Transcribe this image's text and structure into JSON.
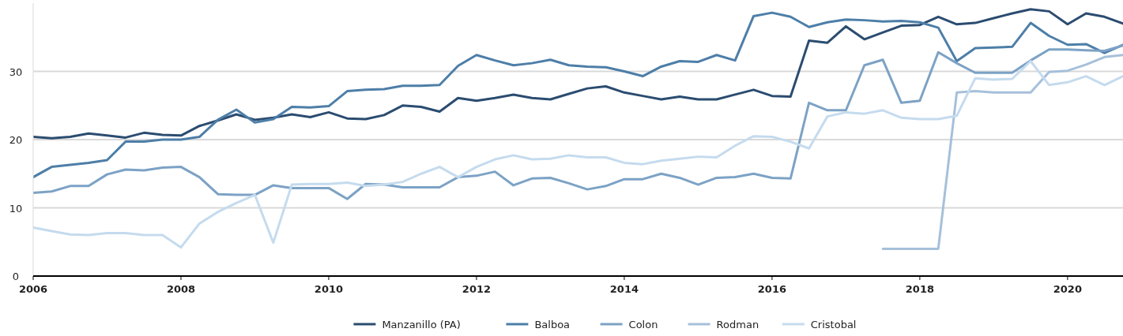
{
  "chart_data": {
    "type": "line",
    "x": [
      2006,
      2006.25,
      2006.5,
      2006.75,
      2007,
      2007.25,
      2007.5,
      2007.75,
      2008,
      2008.25,
      2008.5,
      2008.75,
      2009,
      2009.25,
      2009.5,
      2009.75,
      2010,
      2010.25,
      2010.5,
      2010.75,
      2011,
      2011.25,
      2011.5,
      2011.75,
      2012,
      2012.25,
      2012.5,
      2012.75,
      2013,
      2013.25,
      2013.5,
      2013.75,
      2014,
      2014.25,
      2014.5,
      2014.75,
      2015,
      2015.25,
      2015.5,
      2015.75,
      2016,
      2016.25,
      2016.5,
      2016.75,
      2017,
      2017.25,
      2017.5,
      2017.75,
      2018,
      2018.25,
      2018.5,
      2018.75,
      2019,
      2019.25,
      2019.5,
      2019.75,
      2020,
      2020.25,
      2020.5,
      2020.75
    ],
    "xlim": [
      2006,
      2020.75
    ],
    "xticks": [
      2006,
      2008,
      2010,
      2012,
      2014,
      2016,
      2018,
      2020
    ],
    "ylim": [
      0,
      40
    ],
    "yticks": [
      0,
      10,
      20,
      30
    ],
    "grid": "y",
    "legend": "bottom",
    "line_style": "solid",
    "series": [
      {
        "name": "Manzanillo (PA)",
        "color": "#2b4c70",
        "values": [
          20.4,
          20.2,
          20.4,
          20.9,
          20.6,
          20.3,
          21.0,
          20.7,
          20.6,
          22.0,
          22.8,
          23.7,
          22.9,
          23.2,
          23.7,
          23.3,
          24.0,
          23.1,
          23.0,
          23.6,
          25.0,
          24.8,
          24.1,
          26.1,
          25.7,
          26.1,
          26.6,
          26.1,
          25.9,
          26.7,
          27.5,
          27.8,
          26.9,
          26.4,
          25.9,
          26.3,
          25.9,
          25.9,
          26.6,
          27.3,
          26.4,
          26.3,
          34.5,
          34.2,
          36.6,
          34.7,
          35.7,
          36.7,
          36.8,
          38.0,
          36.9,
          37.1,
          37.8,
          38.5,
          39.1,
          38.8,
          36.9,
          38.5,
          38.0,
          37.0
        ]
      },
      {
        "name": "Balboa",
        "color": "#4d7ea8",
        "values": [
          14.5,
          16.0,
          16.3,
          16.6,
          17.0,
          19.7,
          19.7,
          20.0,
          20.0,
          20.4,
          22.9,
          24.4,
          22.5,
          23.0,
          24.8,
          24.7,
          24.9,
          27.1,
          27.3,
          27.4,
          27.9,
          27.9,
          28.0,
          30.8,
          32.4,
          31.6,
          30.9,
          31.2,
          31.7,
          30.9,
          30.7,
          30.6,
          30.0,
          29.3,
          30.7,
          31.5,
          31.4,
          32.4,
          31.6,
          38.1,
          38.6,
          38.0,
          36.5,
          37.2,
          37.6,
          37.5,
          37.3,
          37.4,
          37.2,
          36.4,
          31.5,
          33.4,
          33.5,
          33.6,
          37.1,
          35.2,
          33.9,
          34.0,
          32.7,
          33.9
        ]
      },
      {
        "name": "Colon",
        "color": "#7ca2c5",
        "values": [
          12.2,
          12.4,
          13.2,
          13.2,
          14.9,
          15.6,
          15.5,
          15.9,
          16.0,
          14.5,
          12.0,
          11.9,
          11.9,
          13.3,
          12.9,
          12.9,
          12.9,
          11.3,
          13.5,
          13.4,
          13.0,
          13.0,
          13.0,
          14.5,
          14.7,
          15.3,
          13.3,
          14.3,
          14.4,
          13.6,
          12.7,
          13.2,
          14.2,
          14.2,
          15.0,
          14.4,
          13.4,
          14.4,
          14.5,
          15.0,
          14.4,
          14.3,
          25.4,
          24.3,
          24.3,
          30.9,
          31.7,
          25.4,
          25.7,
          32.8,
          31.2,
          29.8,
          29.8,
          29.8,
          31.6,
          33.2,
          33.2,
          33.1,
          33.0,
          33.8
        ]
      },
      {
        "name": "Rodman",
        "color": "#a6c0da",
        "values": [
          null,
          null,
          null,
          null,
          null,
          null,
          null,
          null,
          null,
          null,
          null,
          null,
          null,
          null,
          null,
          null,
          null,
          null,
          null,
          null,
          null,
          null,
          null,
          null,
          null,
          null,
          null,
          null,
          null,
          null,
          null,
          null,
          null,
          null,
          null,
          null,
          null,
          null,
          null,
          null,
          null,
          null,
          null,
          null,
          null,
          null,
          4.0,
          4.0,
          4.0,
          4.0,
          26.9,
          27.1,
          26.9,
          26.9,
          26.9,
          29.9,
          30.1,
          31.0,
          32.1,
          32.4
        ]
      },
      {
        "name": "Cristobal",
        "color": "#c5dbee",
        "values": [
          7.1,
          6.6,
          6.1,
          6.0,
          6.3,
          6.3,
          6.0,
          6.0,
          4.2,
          7.7,
          9.4,
          10.7,
          11.9,
          4.9,
          13.4,
          13.5,
          13.5,
          13.7,
          13.2,
          13.4,
          13.8,
          15.0,
          16.0,
          14.5,
          16.0,
          17.1,
          17.7,
          17.1,
          17.2,
          17.7,
          17.4,
          17.4,
          16.6,
          16.4,
          16.9,
          17.2,
          17.5,
          17.4,
          19.1,
          20.5,
          20.4,
          19.7,
          18.7,
          23.4,
          24.0,
          23.8,
          24.3,
          23.2,
          23.0,
          23.0,
          23.5,
          29.0,
          28.8,
          28.9,
          31.5,
          28.0,
          28.4,
          29.3,
          28.0,
          29.3
        ]
      }
    ]
  }
}
